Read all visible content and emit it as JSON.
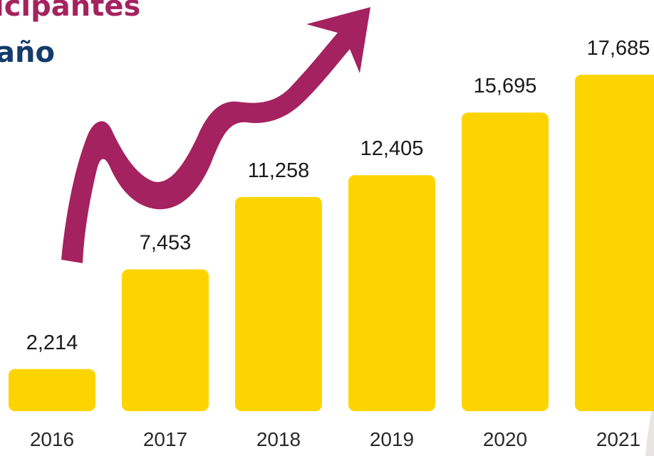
{
  "chart_data": {
    "type": "bar",
    "title_line1": "icipantes",
    "title_line2": "año",
    "categories": [
      "2016",
      "2017",
      "2018",
      "2019",
      "2020",
      "2021"
    ],
    "values": [
      2214,
      7453,
      11258,
      12405,
      15695,
      17685
    ],
    "value_labels": [
      "2,214",
      "7,453",
      "11,258",
      "12,405",
      "15,695",
      "17,685"
    ],
    "xlabel": "",
    "ylabel": "",
    "ylim": [
      0,
      17685
    ],
    "grid": false,
    "bar_color": "#fcd500",
    "arrow_color": "#a4225f",
    "title_color_1": "#a4225f",
    "title_color_2": "#133b6b"
  }
}
